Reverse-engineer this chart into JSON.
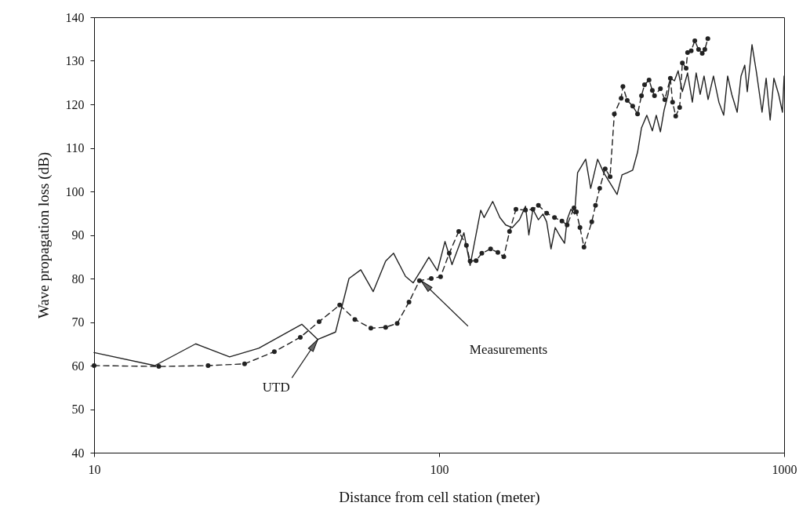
{
  "chart_data": {
    "type": "line",
    "xlabel": "Distance from cell station (meter)",
    "ylabel": "Wave propagation loss  (dB)",
    "log": "x",
    "xlim": [
      10,
      1000
    ],
    "xticks": [
      10,
      100,
      1000
    ],
    "ylim": [
      40,
      140
    ],
    "yticks": [
      40,
      50,
      60,
      70,
      80,
      90,
      100,
      110,
      120,
      130,
      140
    ],
    "grid": false,
    "series": [
      {
        "color": "#222222",
        "line_style": "solid",
        "marker": "none",
        "x": [
          10,
          15,
          19.7,
          24.7,
          30,
          40,
          44.5,
          50.1,
          54.8,
          59.3,
          64.4,
          70,
          73.8,
          79.9,
          84.1,
          89.1,
          93.4,
          98.9,
          104,
          109,
          118,
          123,
          132,
          135,
          143,
          150,
          156,
          163,
          171,
          178,
          182,
          187,
          194,
          200,
          205,
          211,
          217,
          223,
          231,
          235,
          241,
          247,
          252,
          266,
          275,
          288,
          300,
          328,
          339,
          351,
          364,
          376,
          386,
          400,
          415,
          426,
          438,
          449,
          461,
          468,
          481,
          493,
          507,
          525,
          542,
          556,
          571,
          586,
          602,
          624,
          647,
          668,
          686,
          705,
          731,
          750,
          769,
          782,
          807,
          832,
          863,
          887,
          911,
          934,
          964,
          989,
          1000
        ],
        "values": [
          63,
          60,
          65,
          62,
          64,
          69.5,
          66,
          67.7,
          80,
          82,
          77,
          84,
          85.8,
          80.5,
          79,
          82.2,
          84.9,
          81.8,
          88.5,
          83.2,
          90.5,
          83,
          95.7,
          94,
          97.7,
          94,
          92.3,
          91.7,
          93.5,
          96.6,
          90,
          95.9,
          93.5,
          94.8,
          93,
          86.8,
          91.7,
          90,
          88.1,
          93.5,
          95.9,
          94.8,
          104.3,
          107.4,
          100.7,
          107.4,
          104.3,
          99.3,
          103.8,
          104.3,
          104.9,
          109,
          114.6,
          117.5,
          113.9,
          117.5,
          113.7,
          118.7,
          122.3,
          126,
          125.4,
          127.7,
          122.9,
          127.2,
          120.5,
          127.2,
          122.3,
          126.5,
          121.1,
          126.5,
          120.5,
          117.5,
          126.5,
          122.3,
          118.2,
          126.5,
          129,
          122.9,
          133.7,
          127.2,
          118.2,
          126,
          116.4,
          126,
          122.3,
          118.2,
          126.5
        ]
      },
      {
        "color": "#222222",
        "line_style": "dashed",
        "marker": "circle",
        "x": [
          10,
          15.4,
          21.4,
          27.3,
          33.3,
          39.6,
          44.9,
          51.5,
          57,
          63.4,
          70,
          75.6,
          81.8,
          87.7,
          94.9,
          101,
          107,
          114,
          120,
          123,
          128,
          133,
          141,
          148,
          154,
          160,
          167,
          178,
          187,
          194,
          205,
          216,
          227,
          235,
          246,
          250,
          256,
          263,
          277,
          284,
          292,
          303,
          313,
          322,
          337,
          341,
          351,
          364,
          376,
          386,
          394,
          406,
          415,
          421,
          438,
          451,
          468,
          475,
          485,
          498,
          507,
          520,
          525,
          538,
          551,
          565,
          579,
          589,
          601
        ],
        "values": [
          60,
          59.8,
          60,
          60.4,
          63.2,
          66.5,
          70.1,
          73.9,
          70.6,
          68.6,
          68.8,
          69.7,
          74.6,
          79.5,
          80,
          80.4,
          85.8,
          90.8,
          87.6,
          84,
          84.1,
          85.8,
          86.8,
          86,
          85,
          90.8,
          95.9,
          95.7,
          95.9,
          96.8,
          95,
          94,
          93.2,
          92.3,
          96.2,
          95.3,
          91.7,
          87.2,
          93,
          96.8,
          100.7,
          105.2,
          103.4,
          117.8,
          121.4,
          124.1,
          120.9,
          119.6,
          117.8,
          122,
          124.5,
          125.6,
          123.2,
          122,
          123.6,
          121.1,
          126,
          120.5,
          117.3,
          119.3,
          129.5,
          128.3,
          131.9,
          132.3,
          134.6,
          132.6,
          131.7,
          132.6,
          135.1
        ]
      }
    ],
    "annotations": [
      {
        "text": "UTD",
        "x": 44.5,
        "y": 66
      },
      {
        "text": "Measurements",
        "x": 88.6,
        "y": 79.5
      }
    ]
  }
}
